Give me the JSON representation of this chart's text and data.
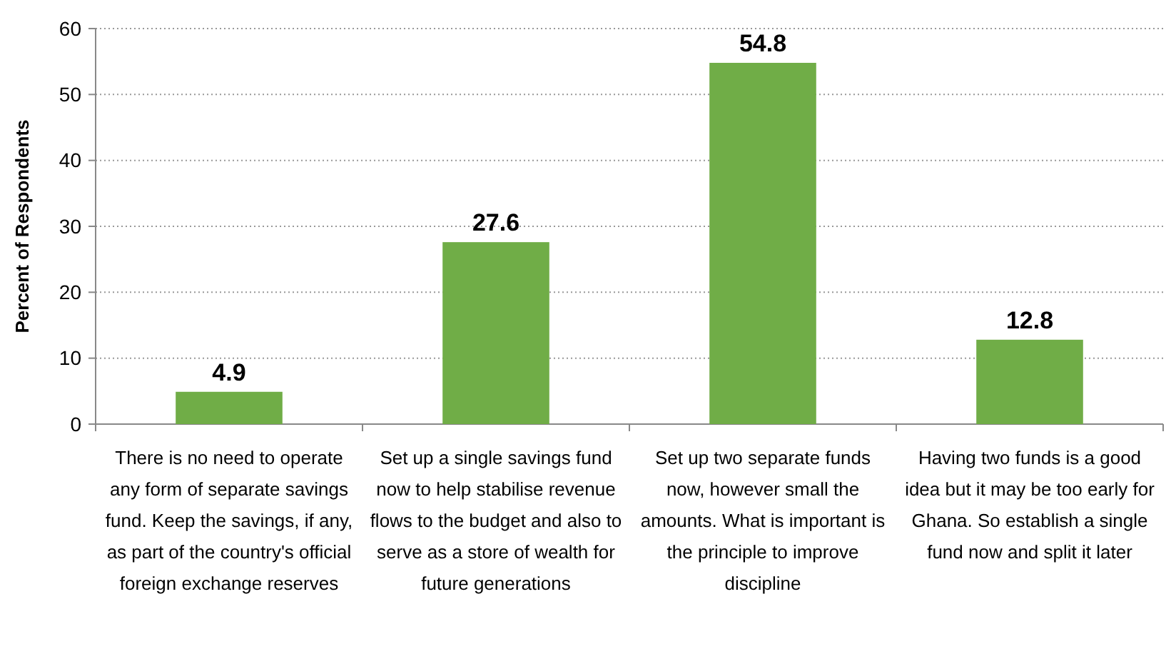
{
  "chart_data": {
    "type": "bar",
    "ylabel": "Percent of Respondents",
    "categories": [
      "There is no need to operate any form of separate savings fund. Keep the savings, if any, as part of the country's official foreign exchange reserves",
      "Set up a single savings fund now to help stabilise revenue flows to the budget and also to serve as a store of wealth for future generations",
      "Set up two separate funds now, however small the amounts. What is important is the principle to improve discipline",
      "Having two funds is a good idea but it may be too early for Ghana. So establish a single fund now and split it later"
    ],
    "values": [
      4.9,
      27.6,
      54.8,
      12.8
    ],
    "color": "#70ad47",
    "ylim": [
      0,
      60
    ],
    "yticks": [
      0,
      10,
      20,
      30,
      40,
      50,
      60
    ],
    "grid": "y",
    "data_labels": true
  }
}
